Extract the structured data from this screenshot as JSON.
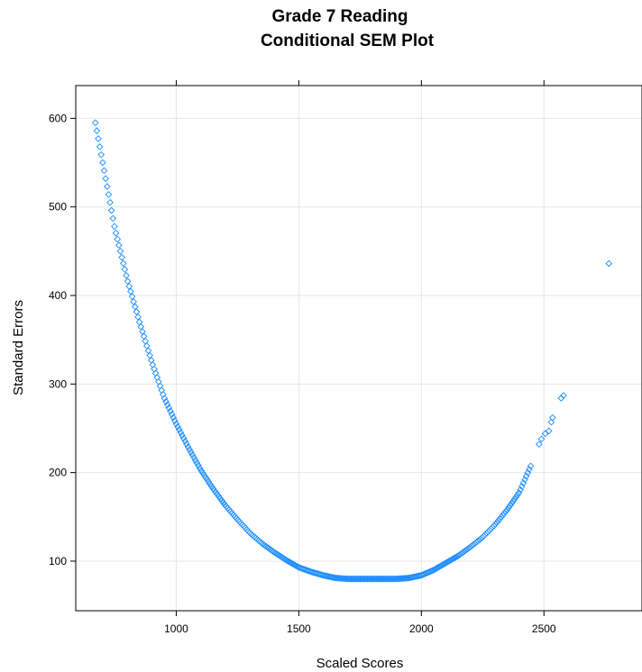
{
  "chart_data": {
    "type": "scatter",
    "title_lines": [
      "Grade 7 Reading",
      "Conditional SEM Plot"
    ],
    "xlabel": "Scaled Scores",
    "ylabel": "Standard Errors",
    "xlim": [
      590,
      2900
    ],
    "ylim": [
      44,
      637
    ],
    "xticks": [
      1000,
      1500,
      2000,
      2500
    ],
    "yticks": [
      100,
      200,
      300,
      400,
      500,
      600
    ],
    "xtick_labels": [
      "1000",
      "1500",
      "2000",
      "2500"
    ],
    "ytick_labels": [
      "100",
      "200",
      "300",
      "400",
      "500",
      "600"
    ],
    "grid": true,
    "marker": "open-diamond",
    "marker_color": "#1a8cff",
    "curve_knots": [
      [
        670,
        595
      ],
      [
        700,
        550
      ],
      [
        750,
        475
      ],
      [
        800,
        418
      ],
      [
        850,
        370
      ],
      [
        900,
        325
      ],
      [
        950,
        285
      ],
      [
        1000,
        255
      ],
      [
        1050,
        228
      ],
      [
        1100,
        203
      ],
      [
        1150,
        182
      ],
      [
        1200,
        163
      ],
      [
        1250,
        147
      ],
      [
        1300,
        132
      ],
      [
        1350,
        120
      ],
      [
        1400,
        110
      ],
      [
        1450,
        101
      ],
      [
        1500,
        93
      ],
      [
        1550,
        88
      ],
      [
        1600,
        84
      ],
      [
        1650,
        81
      ],
      [
        1700,
        80
      ],
      [
        1750,
        80
      ],
      [
        1800,
        80
      ],
      [
        1850,
        80
      ],
      [
        1900,
        80
      ],
      [
        1950,
        81
      ],
      [
        2000,
        84
      ],
      [
        2050,
        90
      ],
      [
        2100,
        98
      ],
      [
        2150,
        106
      ],
      [
        2200,
        116
      ],
      [
        2250,
        127
      ],
      [
        2300,
        141
      ],
      [
        2350,
        158
      ],
      [
        2400,
        178
      ],
      [
        2450,
        210
      ]
    ],
    "curve_step": 6,
    "extra_points": [
      [
        2480,
        232
      ],
      [
        2490,
        238
      ],
      [
        2505,
        244
      ],
      [
        2520,
        247
      ],
      [
        2530,
        257
      ],
      [
        2535,
        262
      ],
      [
        2570,
        284
      ],
      [
        2580,
        287
      ],
      [
        2765,
        436
      ]
    ]
  }
}
